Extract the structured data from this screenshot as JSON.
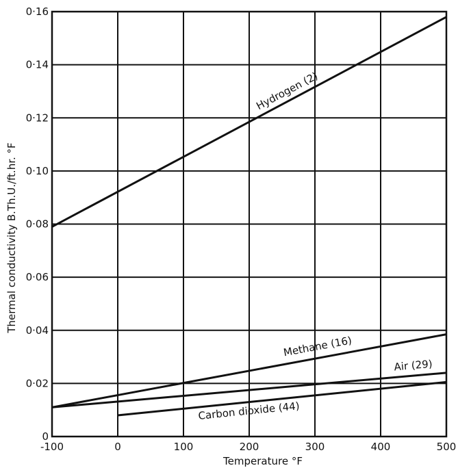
{
  "chart_data": {
    "type": "line",
    "xlabel": "Temperature °F",
    "ylabel": "Thermal conductivity B.Th.U./ft.hr. °F",
    "xlim": [
      -100,
      500
    ],
    "ylim": [
      0,
      0.16
    ],
    "x_ticks": [
      -100,
      0,
      100,
      200,
      300,
      400,
      500
    ],
    "x_tick_labels": [
      "-100",
      "0",
      "100",
      "200",
      "300",
      "400",
      "500"
    ],
    "y_ticks": [
      0,
      0.02,
      0.04,
      0.06,
      0.08,
      0.1,
      0.12,
      0.14,
      0.16
    ],
    "y_tick_labels": [
      "0",
      "0·02",
      "0·04",
      "0·06",
      "0·08",
      "0·10",
      "0·12",
      "0·14",
      "0·16"
    ],
    "grid": true,
    "series": [
      {
        "name": "Hydrogen (2)",
        "x": [
          -100,
          500
        ],
        "y": [
          0.079,
          0.158
        ]
      },
      {
        "name": "Methane (16)",
        "x": [
          -100,
          500
        ],
        "y": [
          0.011,
          0.0385
        ]
      },
      {
        "name": "Air (29)",
        "x": [
          -100,
          500
        ],
        "y": [
          0.011,
          0.024
        ]
      },
      {
        "name": "Carbon dioxide (44)",
        "x": [
          0,
          500
        ],
        "y": [
          0.008,
          0.0205
        ]
      }
    ]
  }
}
